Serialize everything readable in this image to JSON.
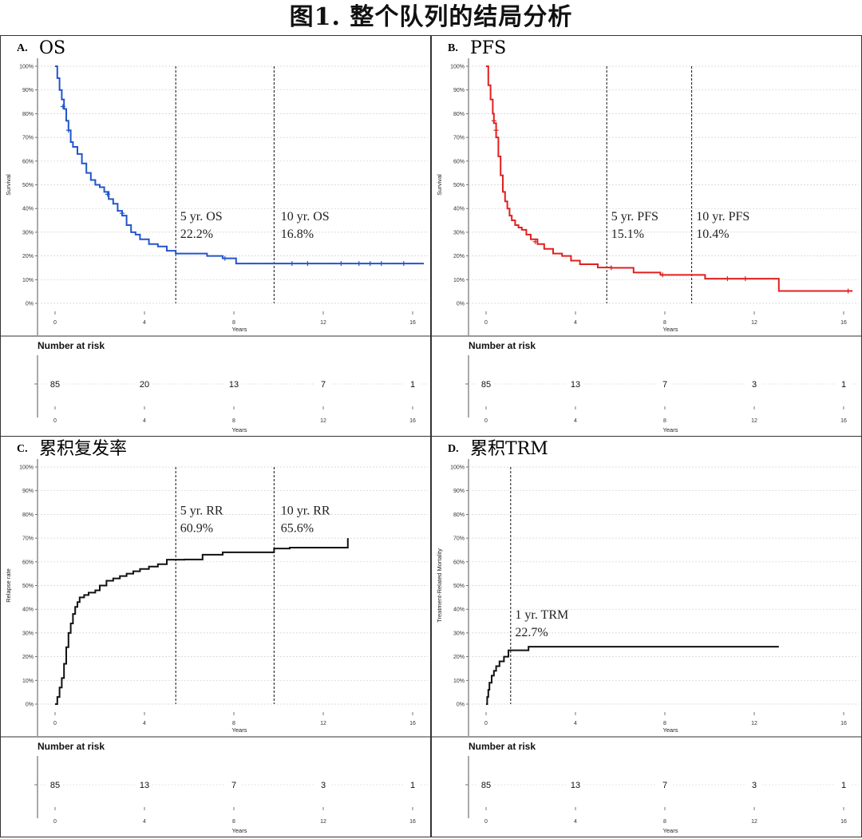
{
  "figure_title": "图1. 整个队列的结局分析",
  "chart_data": [
    {
      "id": "A",
      "panel_label": "A.",
      "panel_title": "OS",
      "type": "line",
      "color": "#2255cc",
      "ylabel": "Survival",
      "xlabel": "Years",
      "xlim": [
        0,
        16.5
      ],
      "ylim": [
        0,
        100
      ],
      "y_ticks": [
        "0%",
        "10%",
        "20%",
        "30%",
        "40%",
        "50%",
        "60%",
        "70%",
        "80%",
        "90%",
        "100%"
      ],
      "x_ticks": [
        "0",
        "4",
        "8",
        "12",
        "16"
      ],
      "series": [
        {
          "x": [
            0,
            0.1,
            0.2,
            0.3,
            0.4,
            0.5,
            0.6,
            0.7,
            0.8,
            1.0,
            1.2,
            1.4,
            1.6,
            1.8,
            2.0,
            2.2,
            2.4,
            2.6,
            2.8,
            3.0,
            3.2,
            3.4,
            3.6,
            3.8,
            4.2,
            4.6,
            5.0,
            5.4,
            6.8,
            7.5,
            8.1,
            16.5
          ],
          "y": [
            100,
            95,
            90,
            86,
            82,
            77,
            73,
            68,
            66,
            63,
            59,
            55,
            52,
            50,
            49,
            47,
            44,
            42,
            39,
            37,
            33,
            30,
            29,
            27,
            25,
            24,
            22.2,
            21,
            20,
            19,
            16.8,
            16.8
          ]
        }
      ],
      "censor": [
        [
          0.35,
          83
        ],
        [
          0.6,
          73
        ],
        [
          2.35,
          46
        ],
        [
          3.0,
          38
        ],
        [
          7.6,
          19
        ],
        [
          10.6,
          16.8
        ],
        [
          11.3,
          16.8
        ],
        [
          12.8,
          16.8
        ],
        [
          13.6,
          16.8
        ],
        [
          14.1,
          16.8
        ],
        [
          14.6,
          16.8
        ],
        [
          15.6,
          16.8
        ]
      ],
      "vlines": [
        5.4,
        9.8
      ],
      "annotations": [
        {
          "x": 5.6,
          "y": 35,
          "lines": [
            "5 yr. OS",
            "22.2%"
          ]
        },
        {
          "x": 10.1,
          "y": 35,
          "lines": [
            "10 yr. OS",
            "16.8%"
          ]
        }
      ],
      "risk": {
        "title": "Number at risk",
        "x": [
          0,
          4,
          8,
          12,
          16
        ],
        "values": [
          "85",
          "20",
          "13",
          "7",
          "1"
        ],
        "xlabel": "Years"
      }
    },
    {
      "id": "B",
      "panel_label": "B.",
      "panel_title": "PFS",
      "type": "line",
      "color": "#e02020",
      "ylabel": "Survival",
      "xlabel": "Years",
      "xlim": [
        0,
        16.5
      ],
      "ylim": [
        0,
        100
      ],
      "y_ticks": [
        "0%",
        "10%",
        "20%",
        "30%",
        "40%",
        "50%",
        "60%",
        "70%",
        "80%",
        "90%",
        "100%"
      ],
      "x_ticks": [
        "0",
        "4",
        "8",
        "12",
        "16"
      ],
      "series": [
        {
          "x": [
            0,
            0.1,
            0.2,
            0.3,
            0.35,
            0.45,
            0.55,
            0.65,
            0.75,
            0.85,
            0.95,
            1.05,
            1.15,
            1.3,
            1.45,
            1.6,
            1.8,
            2.0,
            2.3,
            2.6,
            3.0,
            3.4,
            3.8,
            4.2,
            5.0,
            5.6,
            6.6,
            7.8,
            9.8,
            10.8,
            12.0,
            13.1,
            16.4
          ],
          "y": [
            100,
            92,
            86,
            80,
            76,
            70,
            62,
            54,
            47,
            43,
            40,
            37,
            35,
            33,
            32,
            31,
            29,
            27,
            25,
            23,
            21,
            20,
            18,
            16.5,
            15.1,
            15,
            13,
            12,
            10.4,
            10.4,
            10.4,
            5.2,
            5.2
          ]
        }
      ],
      "censor": [
        [
          0.35,
          77
        ],
        [
          0.45,
          73
        ],
        [
          2.2,
          26
        ],
        [
          5.6,
          15
        ],
        [
          7.9,
          12
        ],
        [
          10.8,
          10.4
        ],
        [
          11.6,
          10.4
        ],
        [
          16.2,
          5.2
        ]
      ],
      "vlines": [
        5.4,
        9.2
      ],
      "annotations": [
        {
          "x": 5.6,
          "y": 35,
          "lines": [
            "5 yr. PFS",
            "15.1%"
          ]
        },
        {
          "x": 9.4,
          "y": 35,
          "lines": [
            "10 yr. PFS",
            "10.4%"
          ]
        }
      ],
      "risk": {
        "title": "Number at risk",
        "x": [
          0,
          4,
          8,
          12,
          16
        ],
        "values": [
          "85",
          "13",
          "7",
          "3",
          "1"
        ],
        "xlabel": "Years"
      }
    },
    {
      "id": "C",
      "panel_label": "C.",
      "panel_title": "累积复发率",
      "type": "line",
      "color": "#111111",
      "ylabel": "Relapse rate",
      "xlabel": "Years",
      "xlim": [
        0,
        16.5
      ],
      "ylim": [
        0,
        100
      ],
      "y_ticks": [
        "0%",
        "10%",
        "20%",
        "30%",
        "40%",
        "50%",
        "60%",
        "70%",
        "80%",
        "90%",
        "100%"
      ],
      "x_ticks": [
        "0",
        "4",
        "8",
        "12",
        "16"
      ],
      "series": [
        {
          "x": [
            0,
            0.1,
            0.2,
            0.3,
            0.4,
            0.5,
            0.6,
            0.7,
            0.8,
            0.9,
            1.0,
            1.1,
            1.3,
            1.5,
            1.8,
            2.0,
            2.3,
            2.6,
            2.9,
            3.2,
            3.5,
            3.8,
            4.2,
            4.6,
            5.0,
            5.8,
            6.6,
            7.5,
            8.8,
            9.8,
            10.5,
            12.0,
            13.0,
            13.1
          ],
          "y": [
            0,
            3,
            7,
            11,
            17,
            24,
            30,
            34,
            38,
            41,
            43,
            45,
            46,
            47,
            48,
            50,
            52,
            53,
            54,
            55,
            56,
            57,
            58,
            59,
            60.9,
            61,
            63,
            64,
            64,
            65.6,
            66,
            66,
            66,
            70
          ]
        }
      ],
      "censor": [],
      "vlines": [
        5.4,
        9.8
      ],
      "annotations": [
        {
          "x": 5.6,
          "y": 80,
          "lines": [
            "5 yr. RR",
            "60.9%"
          ]
        },
        {
          "x": 10.1,
          "y": 80,
          "lines": [
            "10 yr. RR",
            "65.6%"
          ]
        }
      ],
      "risk": {
        "title": "Number at risk",
        "x": [
          0,
          4,
          8,
          12,
          16
        ],
        "values": [
          "85",
          "13",
          "7",
          "3",
          "1"
        ],
        "xlabel": "Years"
      }
    },
    {
      "id": "D",
      "panel_label": "D.",
      "panel_title": "累积TRM",
      "type": "line",
      "color": "#111111",
      "ylabel": "Treatment-Related Mortality",
      "xlabel": "Years",
      "xlim": [
        0,
        16.5
      ],
      "ylim": [
        0,
        100
      ],
      "y_ticks": [
        "0%",
        "10%",
        "20%",
        "30%",
        "40%",
        "50%",
        "60%",
        "70%",
        "80%",
        "90%",
        "100%"
      ],
      "x_ticks": [
        "0",
        "4",
        "8",
        "12",
        "16"
      ],
      "series": [
        {
          "x": [
            0,
            0.05,
            0.1,
            0.15,
            0.25,
            0.35,
            0.45,
            0.6,
            0.8,
            1.0,
            1.9,
            13.1
          ],
          "y": [
            0,
            3,
            6,
            9,
            12,
            14,
            16,
            18,
            20,
            22.7,
            24.2,
            24.2
          ]
        }
      ],
      "censor": [],
      "vlines": [
        1.1
      ],
      "annotations": [
        {
          "x": 1.3,
          "y": 36,
          "lines": [
            "1 yr. TRM",
            "22.7%"
          ]
        }
      ],
      "risk": {
        "title": "Number at risk",
        "x": [
          0,
          4,
          8,
          12,
          16
        ],
        "values": [
          "85",
          "13",
          "7",
          "3",
          "1"
        ],
        "xlabel": "Years"
      }
    }
  ]
}
